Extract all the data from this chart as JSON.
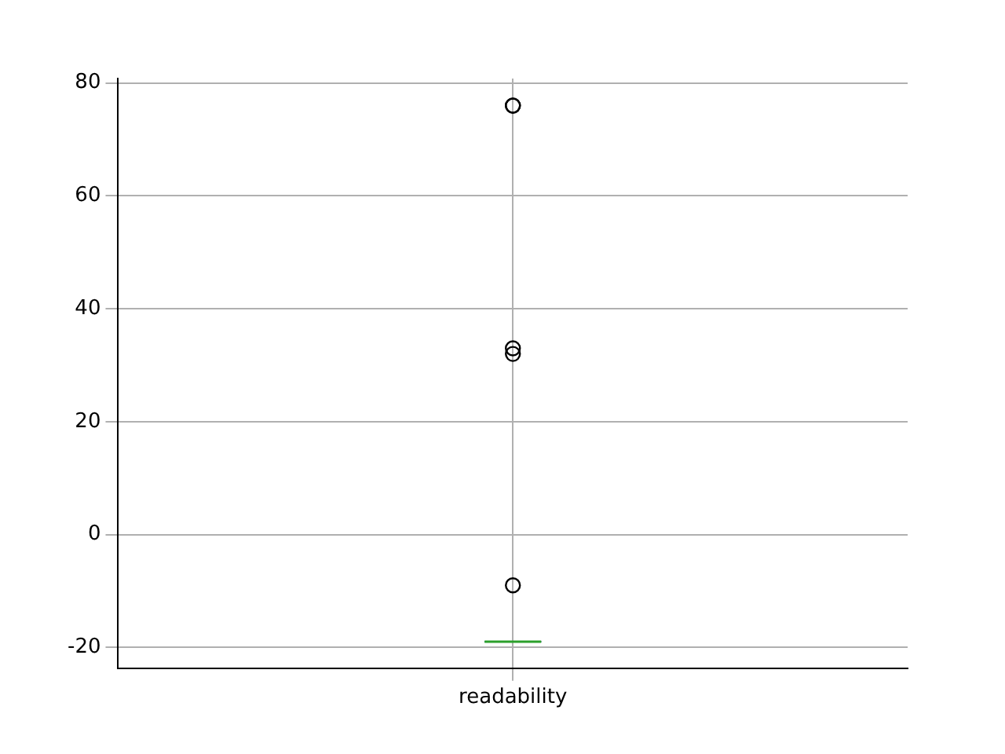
{
  "chart_data": {
    "type": "box",
    "categories": [
      "readability"
    ],
    "boxes": [
      {
        "low": -19,
        "q1": -19,
        "median": -19,
        "q3": -19,
        "high": -19,
        "outliers": [
          76,
          76,
          33,
          32,
          -9
        ]
      }
    ],
    "ylim": [
      -23.7,
      80.8
    ],
    "yticks": [
      -20,
      0,
      20,
      40,
      60,
      80
    ],
    "grid": true,
    "legend": false
  }
}
